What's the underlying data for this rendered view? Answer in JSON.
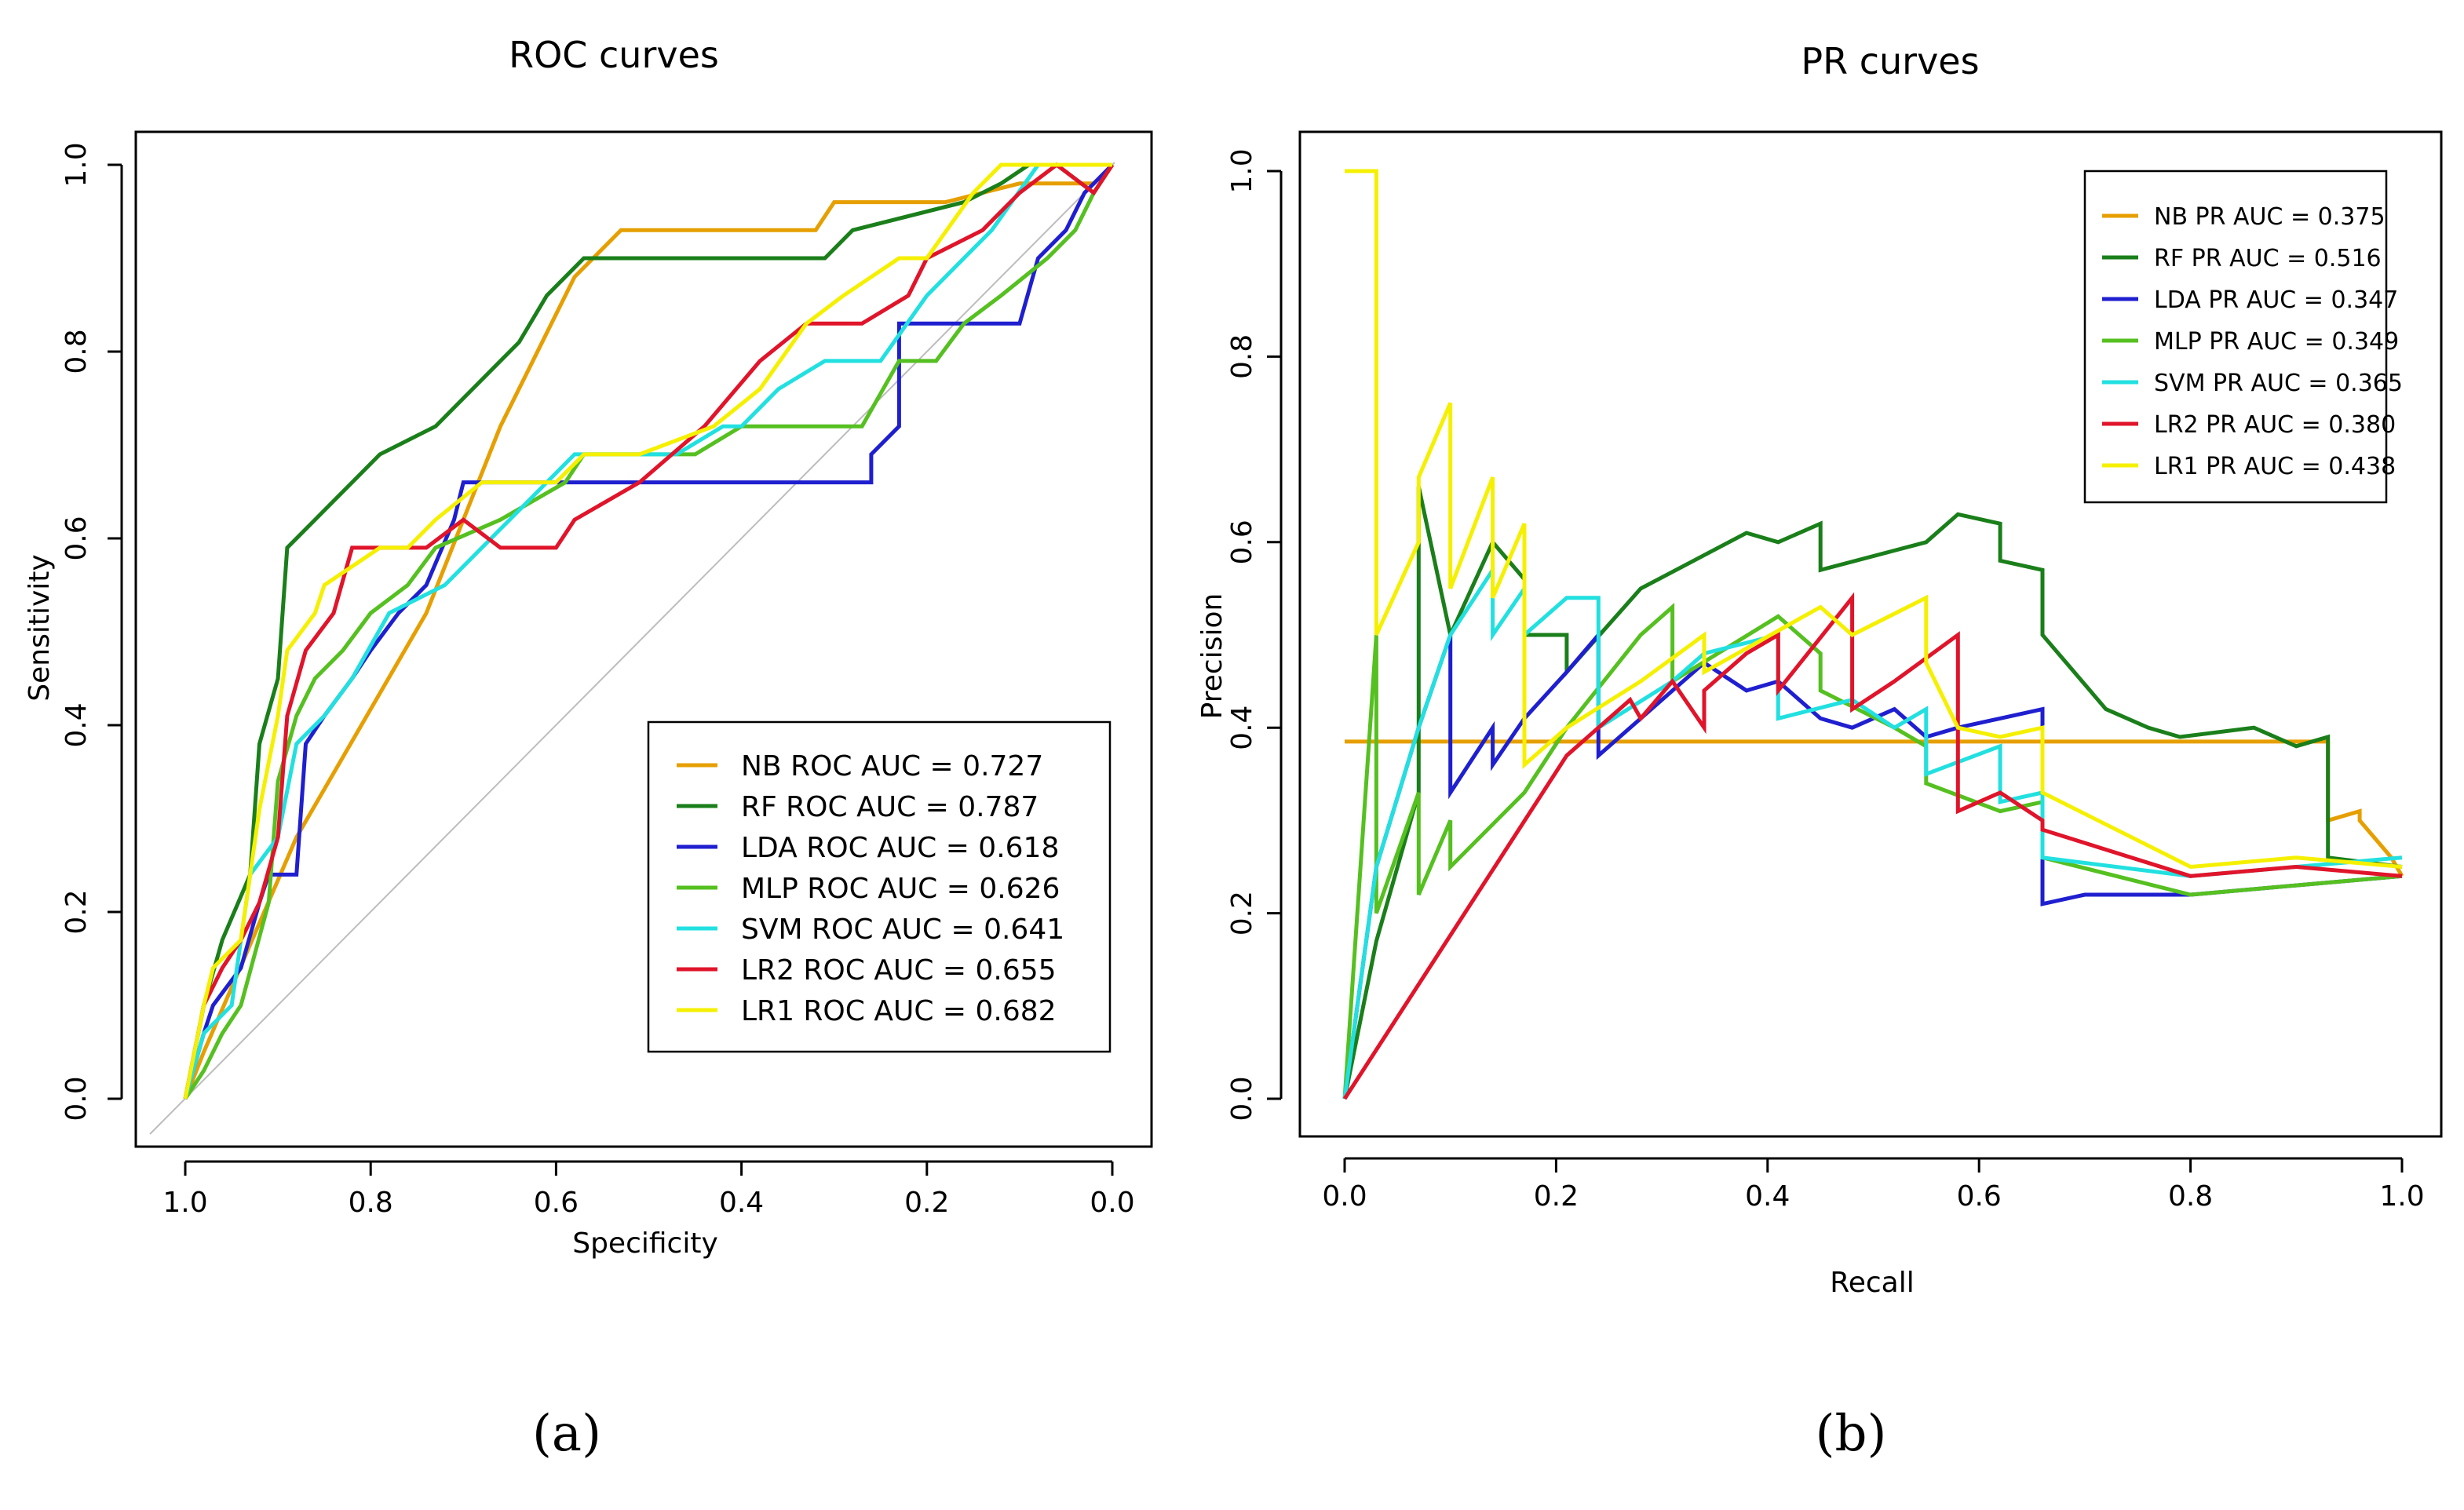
{
  "panel_labels": [
    "(a)",
    "(b)"
  ],
  "chart_data": [
    {
      "type": "line",
      "title": "ROC curves",
      "xlabel": "Specificity",
      "ylabel": "Sensitivity",
      "xlim": [
        1.0,
        0.0
      ],
      "ylim": [
        0.0,
        1.0
      ],
      "xticks": [
        "1.0",
        "0.8",
        "0.6",
        "0.4",
        "0.2",
        "0.0"
      ],
      "yticks": [
        "0.0",
        "0.2",
        "0.4",
        "0.6",
        "0.8",
        "1.0"
      ],
      "diagonal": true,
      "legend_position": "bottom-right",
      "series": [
        {
          "name": "NB ROC AUC  = 0.727",
          "color": "#E69F00",
          "x": [
            1.0,
            0.98,
            0.88,
            0.74,
            0.66,
            0.58,
            0.53,
            0.32,
            0.3,
            0.18,
            0.1,
            0.02,
            0.0
          ],
          "y": [
            0.0,
            0.05,
            0.28,
            0.52,
            0.72,
            0.88,
            0.93,
            0.93,
            0.96,
            0.96,
            0.98,
            0.98,
            1.0
          ]
        },
        {
          "name": "RF ROC AUC  = 0.787",
          "color": "#1A7F1A",
          "x": [
            1.0,
            0.98,
            0.96,
            0.93,
            0.92,
            0.9,
            0.89,
            0.86,
            0.82,
            0.79,
            0.73,
            0.69,
            0.64,
            0.61,
            0.57,
            0.53,
            0.31,
            0.28,
            0.16,
            0.12,
            0.09,
            0.06,
            0.02,
            0.0
          ],
          "y": [
            0.0,
            0.1,
            0.17,
            0.24,
            0.38,
            0.45,
            0.59,
            0.62,
            0.66,
            0.69,
            0.72,
            0.76,
            0.81,
            0.86,
            0.9,
            0.9,
            0.9,
            0.93,
            0.96,
            0.98,
            1.0,
            1.0,
            0.97,
            1.0
          ]
        },
        {
          "name": "LDA ROC AUC  = 0.618",
          "color": "#1F1FD0",
          "x": [
            1.0,
            0.98,
            0.97,
            0.94,
            0.92,
            0.91,
            0.88,
            0.87,
            0.85,
            0.82,
            0.8,
            0.77,
            0.74,
            0.71,
            0.7,
            0.6,
            0.59,
            0.57,
            0.26,
            0.26,
            0.23,
            0.23,
            0.18,
            0.1,
            0.08,
            0.05,
            0.03,
            0.0
          ],
          "y": [
            0.0,
            0.07,
            0.1,
            0.14,
            0.21,
            0.24,
            0.24,
            0.38,
            0.41,
            0.45,
            0.48,
            0.52,
            0.55,
            0.62,
            0.66,
            0.66,
            0.66,
            0.66,
            0.66,
            0.69,
            0.72,
            0.83,
            0.83,
            0.83,
            0.9,
            0.93,
            0.97,
            1.0
          ]
        },
        {
          "name": "MLP ROC AUC  = 0.626",
          "color": "#55C020",
          "x": [
            1.0,
            0.98,
            0.96,
            0.94,
            0.91,
            0.9,
            0.88,
            0.86,
            0.83,
            0.8,
            0.76,
            0.73,
            0.66,
            0.59,
            0.57,
            0.45,
            0.4,
            0.27,
            0.23,
            0.19,
            0.16,
            0.12,
            0.07,
            0.04,
            0.02,
            0.0
          ],
          "y": [
            0.0,
            0.03,
            0.07,
            0.1,
            0.21,
            0.34,
            0.41,
            0.45,
            0.48,
            0.52,
            0.55,
            0.59,
            0.62,
            0.66,
            0.69,
            0.69,
            0.72,
            0.72,
            0.79,
            0.79,
            0.83,
            0.86,
            0.9,
            0.93,
            0.97,
            1.0
          ]
        },
        {
          "name": "SVM ROC AUC  = 0.641",
          "color": "#22E0E0",
          "x": [
            1.0,
            0.98,
            0.95,
            0.93,
            0.9,
            0.88,
            0.85,
            0.82,
            0.78,
            0.72,
            0.68,
            0.65,
            0.62,
            0.58,
            0.47,
            0.42,
            0.4,
            0.36,
            0.31,
            0.25,
            0.2,
            0.16,
            0.13,
            0.08,
            0.04,
            0.0
          ],
          "y": [
            0.0,
            0.07,
            0.1,
            0.24,
            0.28,
            0.38,
            0.41,
            0.45,
            0.52,
            0.55,
            0.59,
            0.62,
            0.65,
            0.69,
            0.69,
            0.72,
            0.72,
            0.76,
            0.79,
            0.79,
            0.86,
            0.9,
            0.93,
            1.0,
            1.0,
            1.0
          ]
        },
        {
          "name": "LR2 ROC AUC  = 0.655",
          "color": "#E0142A",
          "x": [
            1.0,
            0.98,
            0.96,
            0.94,
            0.92,
            0.9,
            0.89,
            0.87,
            0.84,
            0.82,
            0.78,
            0.74,
            0.7,
            0.66,
            0.6,
            0.58,
            0.51,
            0.44,
            0.38,
            0.33,
            0.27,
            0.22,
            0.2,
            0.14,
            0.1,
            0.06,
            0.02,
            0.0
          ],
          "y": [
            0.0,
            0.1,
            0.14,
            0.17,
            0.21,
            0.28,
            0.41,
            0.48,
            0.52,
            0.59,
            0.59,
            0.59,
            0.62,
            0.59,
            0.59,
            0.62,
            0.66,
            0.72,
            0.79,
            0.83,
            0.83,
            0.86,
            0.9,
            0.93,
            0.97,
            1.0,
            0.97,
            1.0
          ]
        },
        {
          "name": "LR1 ROC AUC  = 0.682",
          "color": "#F5F000",
          "x": [
            1.0,
            0.98,
            0.97,
            0.94,
            0.92,
            0.9,
            0.89,
            0.86,
            0.85,
            0.79,
            0.76,
            0.73,
            0.68,
            0.6,
            0.57,
            0.51,
            0.43,
            0.38,
            0.33,
            0.29,
            0.23,
            0.2,
            0.15,
            0.12,
            0.08,
            0.04,
            0.0
          ],
          "y": [
            0.0,
            0.1,
            0.14,
            0.17,
            0.31,
            0.41,
            0.48,
            0.52,
            0.55,
            0.59,
            0.59,
            0.62,
            0.66,
            0.66,
            0.69,
            0.69,
            0.72,
            0.76,
            0.83,
            0.86,
            0.9,
            0.9,
            0.97,
            1.0,
            1.0,
            1.0,
            1.0
          ]
        }
      ]
    },
    {
      "type": "line",
      "title": "PR curves",
      "xlabel": "Recall",
      "ylabel": "Precision",
      "xlim": [
        0.0,
        1.0
      ],
      "ylim": [
        0.0,
        1.0
      ],
      "xticks": [
        "0.0",
        "0.2",
        "0.4",
        "0.6",
        "0.8",
        "1.0"
      ],
      "yticks": [
        "0.0",
        "0.2",
        "0.4",
        "0.6",
        "0.8",
        "1.0"
      ],
      "legend_position": "top-right",
      "series": [
        {
          "name": "NB PR AUC = 0.375",
          "color": "#E69F00",
          "x": [
            0.0,
            0.93,
            0.93,
            0.96,
            0.96,
            0.99,
            1.0
          ],
          "y": [
            0.385,
            0.385,
            0.3,
            0.31,
            0.3,
            0.26,
            0.24
          ]
        },
        {
          "name": "RF PR AUC = 0.516",
          "color": "#1A7F1A",
          "x": [
            0.0,
            0.03,
            0.07,
            0.07,
            0.1,
            0.14,
            0.17,
            0.17,
            0.21,
            0.21,
            0.28,
            0.38,
            0.41,
            0.45,
            0.45,
            0.55,
            0.58,
            0.62,
            0.62,
            0.66,
            0.66,
            0.69,
            0.72,
            0.76,
            0.79,
            0.86,
            0.9,
            0.93,
            0.93,
            1.0
          ],
          "y": [
            0.0,
            0.17,
            0.33,
            0.66,
            0.5,
            0.6,
            0.56,
            0.5,
            0.5,
            0.46,
            0.55,
            0.61,
            0.6,
            0.62,
            0.57,
            0.6,
            0.63,
            0.62,
            0.58,
            0.57,
            0.5,
            0.46,
            0.42,
            0.4,
            0.39,
            0.4,
            0.38,
            0.39,
            0.26,
            0.25
          ]
        },
        {
          "name": "LDA PR AUC = 0.347",
          "color": "#1F1FD0",
          "x": [
            0.0,
            0.03,
            0.07,
            0.1,
            0.1,
            0.14,
            0.14,
            0.17,
            0.21,
            0.24,
            0.24,
            0.34,
            0.38,
            0.41,
            0.45,
            0.48,
            0.52,
            0.55,
            0.58,
            0.62,
            0.66,
            0.66,
            0.7,
            0.8,
            0.9,
            1.0
          ],
          "y": [
            0.0,
            0.25,
            0.4,
            0.5,
            0.33,
            0.4,
            0.36,
            0.41,
            0.46,
            0.5,
            0.37,
            0.47,
            0.44,
            0.45,
            0.41,
            0.4,
            0.42,
            0.39,
            0.4,
            0.41,
            0.42,
            0.21,
            0.22,
            0.22,
            0.23,
            0.24
          ]
        },
        {
          "name": "MLP PR AUC = 0.349",
          "color": "#55C020",
          "x": [
            0.0,
            0.03,
            0.03,
            0.07,
            0.07,
            0.1,
            0.1,
            0.17,
            0.21,
            0.28,
            0.31,
            0.31,
            0.41,
            0.45,
            0.45,
            0.52,
            0.55,
            0.55,
            0.62,
            0.66,
            0.66,
            0.8,
            0.9,
            1.0
          ],
          "y": [
            0.0,
            0.5,
            0.2,
            0.33,
            0.22,
            0.3,
            0.25,
            0.33,
            0.4,
            0.5,
            0.53,
            0.45,
            0.52,
            0.48,
            0.44,
            0.4,
            0.38,
            0.34,
            0.31,
            0.32,
            0.26,
            0.22,
            0.23,
            0.24
          ]
        },
        {
          "name": "SVM PR AUC = 0.365",
          "color": "#22E0E0",
          "x": [
            0.0,
            0.03,
            0.07,
            0.1,
            0.14,
            0.14,
            0.17,
            0.17,
            0.21,
            0.24,
            0.24,
            0.31,
            0.34,
            0.41,
            0.41,
            0.48,
            0.52,
            0.55,
            0.55,
            0.62,
            0.62,
            0.66,
            0.66,
            0.8,
            0.9,
            1.0
          ],
          "y": [
            0.0,
            0.25,
            0.4,
            0.5,
            0.57,
            0.5,
            0.55,
            0.5,
            0.54,
            0.54,
            0.4,
            0.45,
            0.48,
            0.5,
            0.41,
            0.43,
            0.4,
            0.42,
            0.35,
            0.38,
            0.32,
            0.33,
            0.26,
            0.24,
            0.25,
            0.26
          ]
        },
        {
          "name": "LR2 PR AUC = 0.380",
          "color": "#E0142A",
          "x": [
            0.0,
            0.21,
            0.21,
            0.27,
            0.28,
            0.31,
            0.34,
            0.34,
            0.38,
            0.41,
            0.41,
            0.48,
            0.48,
            0.52,
            0.58,
            0.58,
            0.62,
            0.66,
            0.66,
            0.8,
            0.9,
            1.0
          ],
          "y": [
            0.0,
            0.37,
            0.37,
            0.43,
            0.41,
            0.45,
            0.4,
            0.44,
            0.48,
            0.5,
            0.44,
            0.54,
            0.42,
            0.45,
            0.5,
            0.31,
            0.33,
            0.3,
            0.29,
            0.24,
            0.25,
            0.24
          ]
        },
        {
          "name": "LR1 PR AUC = 0.438",
          "color": "#F5F000",
          "x": [
            0.0,
            0.03,
            0.03,
            0.07,
            0.07,
            0.1,
            0.1,
            0.14,
            0.14,
            0.17,
            0.17,
            0.21,
            0.28,
            0.34,
            0.34,
            0.45,
            0.48,
            0.55,
            0.55,
            0.58,
            0.62,
            0.66,
            0.66,
            0.8,
            0.9,
            1.0
          ],
          "y": [
            1.0,
            1.0,
            0.5,
            0.6,
            0.67,
            0.75,
            0.55,
            0.67,
            0.54,
            0.62,
            0.36,
            0.4,
            0.45,
            0.5,
            0.46,
            0.53,
            0.5,
            0.54,
            0.47,
            0.4,
            0.39,
            0.4,
            0.33,
            0.25,
            0.26,
            0.25
          ]
        }
      ]
    }
  ]
}
